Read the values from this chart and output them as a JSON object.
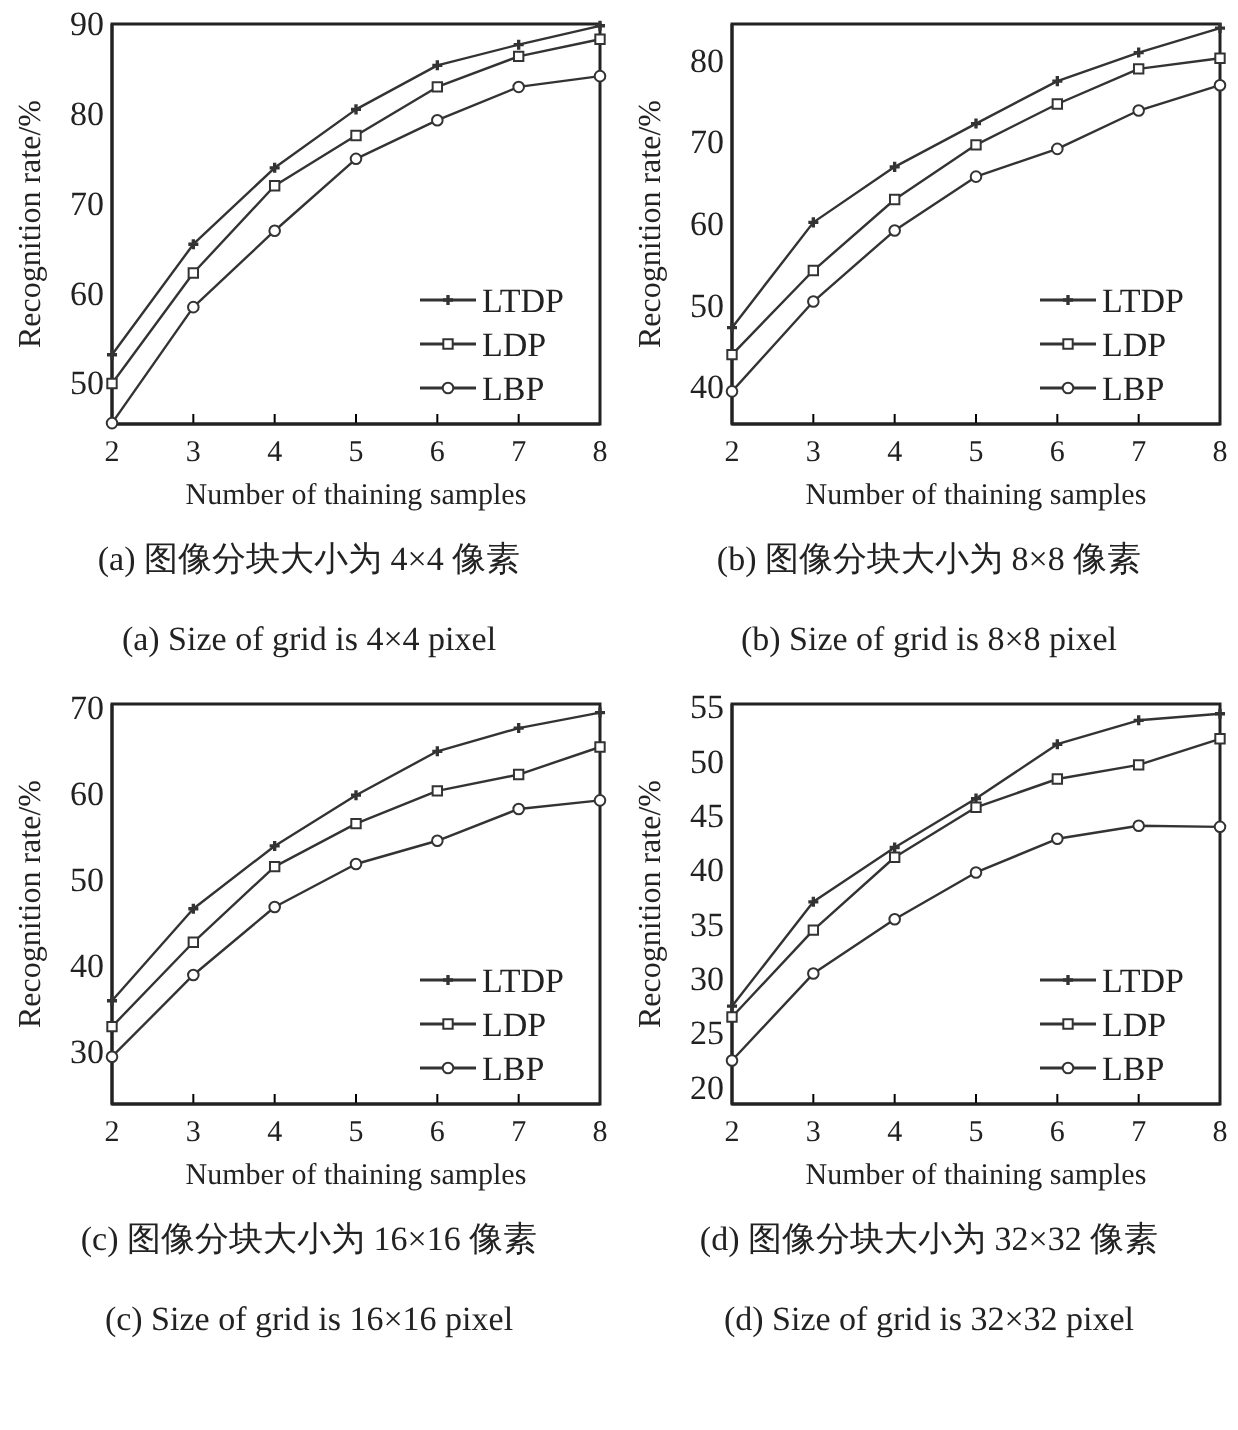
{
  "chart_data": [
    {
      "type": "line",
      "xlabel": "Number of thaining samples",
      "ylabel": "Recognition rate/%",
      "x": [
        2,
        3,
        4,
        5,
        6,
        7,
        8
      ],
      "xlim": [
        2,
        8
      ],
      "xticks": [
        2,
        3,
        4,
        5,
        6,
        7,
        8
      ],
      "ylim": [
        45.5,
        90
      ],
      "yticks": [
        50,
        60,
        70,
        80,
        90
      ],
      "legend": "bottom right",
      "grid": false,
      "annotations": [
        "(a) 图像分块大小为 4×4 像素",
        "(a) Size of grid is 4×4 pixel"
      ],
      "series": [
        {
          "name": "LTDP",
          "color": "#333333",
          "marker": "cross",
          "values": [
            53.2,
            65.5,
            74,
            80.5,
            85.4,
            87.7,
            89.8
          ]
        },
        {
          "name": "LDP",
          "color": "#333333",
          "marker": "square",
          "values": [
            50,
            62.3,
            72,
            77.6,
            83,
            86.4,
            88.3
          ]
        },
        {
          "name": "LBP",
          "color": "#333333",
          "marker": "circle",
          "values": [
            45.6,
            58.5,
            67,
            75,
            79.3,
            83,
            84.2
          ]
        }
      ]
    },
    {
      "type": "line",
      "xlabel": "Number of thaining samples",
      "ylabel": "Recognition rate/%",
      "x": [
        2,
        3,
        4,
        5,
        6,
        7,
        8
      ],
      "xlim": [
        2,
        8
      ],
      "xticks": [
        2,
        3,
        4,
        5,
        6,
        7,
        8
      ],
      "ylim": [
        35.5,
        84.5
      ],
      "yticks": [
        40,
        50,
        60,
        70,
        80
      ],
      "legend": "bottom right",
      "grid": false,
      "annotations": [
        "(b) 图像分块大小为 8×8 像素",
        "(b) Size of grid is 8×8 pixel"
      ],
      "series": [
        {
          "name": "LTDP",
          "color": "#333333",
          "marker": "cross",
          "values": [
            47.3,
            60.2,
            67,
            72.3,
            77.5,
            81,
            84
          ]
        },
        {
          "name": "LDP",
          "color": "#333333",
          "marker": "square",
          "values": [
            44,
            54.3,
            63,
            69.7,
            74.7,
            79,
            80.3
          ]
        },
        {
          "name": "LBP",
          "color": "#333333",
          "marker": "circle",
          "values": [
            39.5,
            50.5,
            59.2,
            65.8,
            69.2,
            73.9,
            77
          ]
        }
      ]
    },
    {
      "type": "line",
      "xlabel": "Number of thaining samples",
      "ylabel": "Recognition rate/%",
      "x": [
        2,
        3,
        4,
        5,
        6,
        7,
        8
      ],
      "xlim": [
        2,
        8
      ],
      "xticks": [
        2,
        3,
        4,
        5,
        6,
        7,
        8
      ],
      "ylim": [
        24,
        70.5
      ],
      "yticks": [
        30,
        40,
        50,
        60,
        70
      ],
      "legend": "bottom right",
      "grid": false,
      "annotations": [
        "(c) 图像分块大小为 16×16 像素",
        "(c) Size of grid is 16×16 pixel"
      ],
      "series": [
        {
          "name": "LTDP",
          "color": "#333333",
          "marker": "cross",
          "values": [
            36,
            46.7,
            54,
            59.9,
            65,
            67.7,
            69.5
          ]
        },
        {
          "name": "LDP",
          "color": "#333333",
          "marker": "square",
          "values": [
            33,
            42.8,
            51.6,
            56.6,
            60.4,
            62.3,
            65.5
          ]
        },
        {
          "name": "LBP",
          "color": "#333333",
          "marker": "circle",
          "values": [
            29.5,
            39,
            46.9,
            51.9,
            54.6,
            58.3,
            59.3
          ]
        }
      ]
    },
    {
      "type": "line",
      "xlabel": "Number of thaining samples",
      "ylabel": "Recognition rate/%",
      "x": [
        2,
        3,
        4,
        5,
        6,
        7,
        8
      ],
      "xlim": [
        2,
        8
      ],
      "xticks": [
        2,
        3,
        4,
        5,
        6,
        7,
        8
      ],
      "ylim": [
        18.5,
        55.3
      ],
      "yticks": [
        20,
        25,
        30,
        35,
        40,
        45,
        50,
        55
      ],
      "legend": "bottom right",
      "grid": false,
      "annotations": [
        "(d) 图像分块大小为 32×32 像素",
        "(d) Size of grid is 32×32 pixel"
      ],
      "series": [
        {
          "name": "LTDP",
          "color": "#333333",
          "marker": "cross",
          "values": [
            27.5,
            37.1,
            42.1,
            46.6,
            51.6,
            53.8,
            54.4
          ]
        },
        {
          "name": "LDP",
          "color": "#333333",
          "marker": "square",
          "values": [
            26.5,
            34.5,
            41.2,
            45.8,
            48.4,
            49.7,
            52.1
          ]
        },
        {
          "name": "LBP",
          "color": "#333333",
          "marker": "circle",
          "values": [
            22.5,
            30.5,
            35.5,
            39.8,
            42.9,
            44.1,
            44
          ]
        }
      ]
    }
  ]
}
